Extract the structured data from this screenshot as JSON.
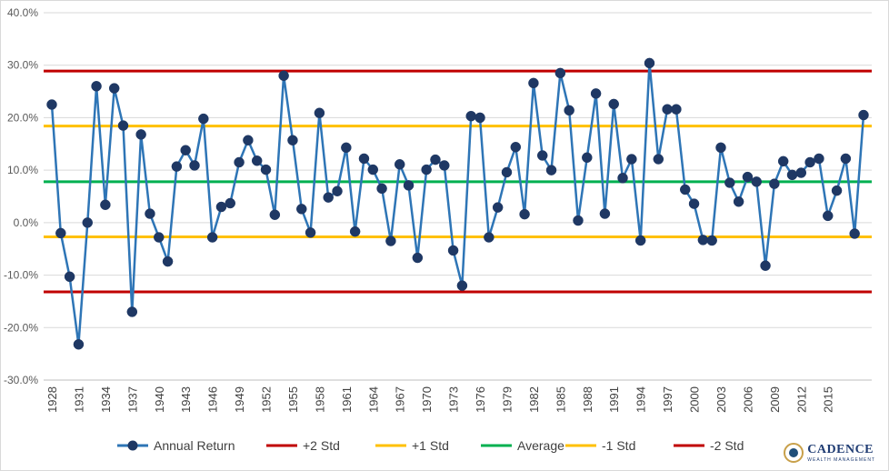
{
  "chart_data": {
    "type": "line",
    "title": "",
    "xlabel": "",
    "ylabel": "",
    "ylim": [
      -30,
      40
    ],
    "ytick_labels": [
      "40.0%",
      "30.0%",
      "20.0%",
      "10.0%",
      "0.0%",
      "-10.0%",
      "-20.0%",
      "-30.0%"
    ],
    "yticks": [
      40,
      30,
      20,
      10,
      0,
      -10,
      -20,
      -30
    ],
    "x": [
      1928,
      1929,
      1930,
      1931,
      1932,
      1933,
      1934,
      1935,
      1936,
      1937,
      1938,
      1939,
      1940,
      1941,
      1942,
      1943,
      1944,
      1945,
      1946,
      1947,
      1948,
      1949,
      1950,
      1951,
      1952,
      1953,
      1954,
      1955,
      1956,
      1957,
      1958,
      1959,
      1960,
      1961,
      1962,
      1963,
      1964,
      1965,
      1966,
      1967,
      1968,
      1969,
      1970,
      1971,
      1972,
      1973,
      1974,
      1975,
      1976,
      1977,
      1978,
      1979,
      1980,
      1981,
      1982,
      1983,
      1984,
      1985,
      1986,
      1987,
      1988,
      1989,
      1990,
      1991,
      1992,
      1993,
      1994,
      1995,
      1996,
      1997,
      1998,
      1999,
      2000,
      2001,
      2002,
      2003,
      2004,
      2005,
      2006,
      2007,
      2008,
      2009,
      2010,
      2011,
      2012,
      2013,
      2014,
      2015,
      2016,
      2017,
      2018,
      2019
    ],
    "xtick_labels": [
      "1928",
      "1931",
      "1934",
      "1937",
      "1940",
      "1943",
      "1946",
      "1949",
      "1952",
      "1955",
      "1958",
      "1961",
      "1964",
      "1967",
      "1970",
      "1973",
      "1976",
      "1979",
      "1982",
      "1985",
      "1988",
      "1991",
      "1994",
      "1997",
      "2000",
      "2003",
      "2006",
      "2009",
      "2012",
      "2015"
    ],
    "series": [
      {
        "name": "Annual Return",
        "color": "#2e75b6",
        "marker_color": "#1f3864",
        "values": [
          22.5,
          -2,
          -10.3,
          -23.2,
          0,
          26,
          3.4,
          25.6,
          18.5,
          -17,
          16.8,
          1.7,
          -2.8,
          -7.4,
          10.7,
          13.8,
          10.9,
          19.8,
          -2.8,
          3,
          3.7,
          11.5,
          15.7,
          11.8,
          10.1,
          1.5,
          28,
          15.7,
          2.6,
          -1.9,
          20.9,
          4.8,
          6,
          14.3,
          -1.7,
          12.2,
          10.1,
          6.5,
          -3.5,
          11.1,
          7.1,
          -6.7,
          10.1,
          12,
          10.9,
          -5.3,
          -12,
          20.3,
          20,
          -2.8,
          2.9,
          9.6,
          14.4,
          1.6,
          26.6,
          12.8,
          10,
          28.5,
          21.4,
          0.4,
          12.4,
          24.6,
          1.7,
          22.6,
          8.5,
          12.1,
          -3.4,
          30.4,
          12.1,
          21.6,
          21.6,
          6.3,
          3.6,
          -3.3,
          -3.4,
          14.3,
          7.6,
          4,
          8.7,
          7.8,
          -8.2,
          7.4,
          11.7,
          9.1,
          9.5,
          11.5,
          12.2,
          1.3,
          6.1,
          12.2,
          -2.1,
          20.5
        ]
      },
      {
        "name": "+2 Std",
        "color": "#c00000",
        "value": 28.9
      },
      {
        "name": "+1 Std",
        "color": "#ffc000",
        "value": 18.4
      },
      {
        "name": "Average",
        "color": "#00b050",
        "value": 7.8
      },
      {
        "name": "-1 Std",
        "color": "#ffc000",
        "value": -2.7
      },
      {
        "name": "-2 Std",
        "color": "#c00000",
        "value": -13.2
      }
    ],
    "grid": true,
    "legend_position": "bottom"
  },
  "logo": {
    "name": "CADENCE",
    "subtitle": "WEALTH MANAGEMENT"
  }
}
